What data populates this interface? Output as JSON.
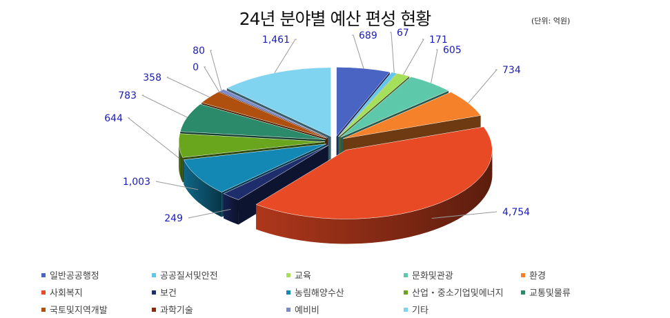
{
  "chart_data": {
    "type": "pie",
    "title": "24년 분야별 예산 편성 현황",
    "unit_note": "(단위: 억원)",
    "legend_position": "bottom",
    "categories": [
      "일반공공행정",
      "공공질서및안전",
      "교육",
      "문화및관광",
      "환경",
      "사회복지",
      "보건",
      "농림해양수산",
      "산업・중소기업및에너지",
      "교통및물류",
      "국토및지역개발",
      "과학기술",
      "예비비",
      "기타"
    ],
    "values": [
      689,
      67,
      171,
      605,
      734,
      4754,
      249,
      1003,
      644,
      783,
      358,
      0,
      80,
      1461
    ],
    "labels": [
      "689",
      "67",
      "171",
      "605",
      "734",
      "4,754",
      "249",
      "1,003",
      "644",
      "783",
      "358",
      "0",
      "80",
      "1,461"
    ],
    "colors": [
      "#4a64c4",
      "#5fc8ea",
      "#a6e05a",
      "#5ec9aa",
      "#f5822a",
      "#e84a25",
      "#1e2d6b",
      "#1488b5",
      "#6aa51e",
      "#2a8a6a",
      "#b0500f",
      "#8a2a10",
      "#7d8ac8",
      "#80d4f0"
    ],
    "label_color": "#1a1ab8"
  }
}
